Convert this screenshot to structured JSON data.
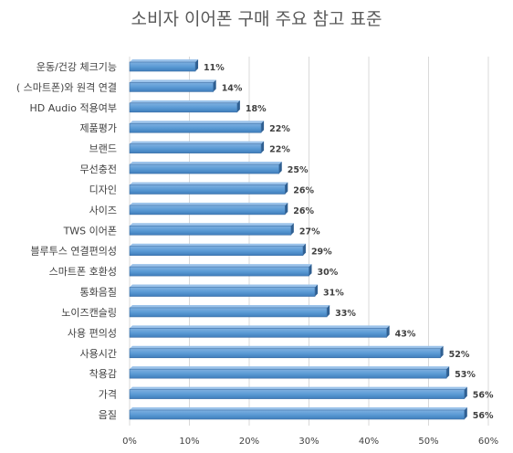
{
  "chart_data": {
    "type": "bar",
    "orientation": "horizontal",
    "title": "소비자 이어폰 구매 주요 참고 표준",
    "xlabel": "",
    "ylabel": "",
    "xlim": [
      0,
      60
    ],
    "ticks": [
      0,
      10,
      20,
      30,
      40,
      50,
      60
    ],
    "tick_labels": [
      "0%",
      "10%",
      "20%",
      "30%",
      "40%",
      "50%",
      "60%"
    ],
    "grid": true,
    "legend": "none",
    "bar_color": "#5b9bd5",
    "categories": [
      "운동/건강 체크기능",
      "( 스마트폰)와 원격 연결",
      "HD Audio 적용여부",
      "제품평가",
      "브랜드",
      "무선충전",
      "디자인",
      "사이즈",
      "TWS 이어폰",
      "블루투스 연결편의성",
      "스마트폰 호환성",
      "통화음질",
      "노이즈캔슬링",
      "사용 편의성",
      "사용시간",
      "착용감",
      "가격",
      "음질"
    ],
    "values": [
      11,
      14,
      18,
      22,
      22,
      25,
      26,
      26,
      27,
      29,
      30,
      31,
      33,
      43,
      52,
      53,
      56,
      56
    ],
    "value_labels": [
      "11%",
      "14%",
      "18%",
      "22%",
      "22%",
      "25%",
      "26%",
      "26%",
      "27%",
      "29%",
      "30%",
      "31%",
      "33%",
      "43%",
      "52%",
      "53%",
      "56%",
      "56%"
    ]
  }
}
